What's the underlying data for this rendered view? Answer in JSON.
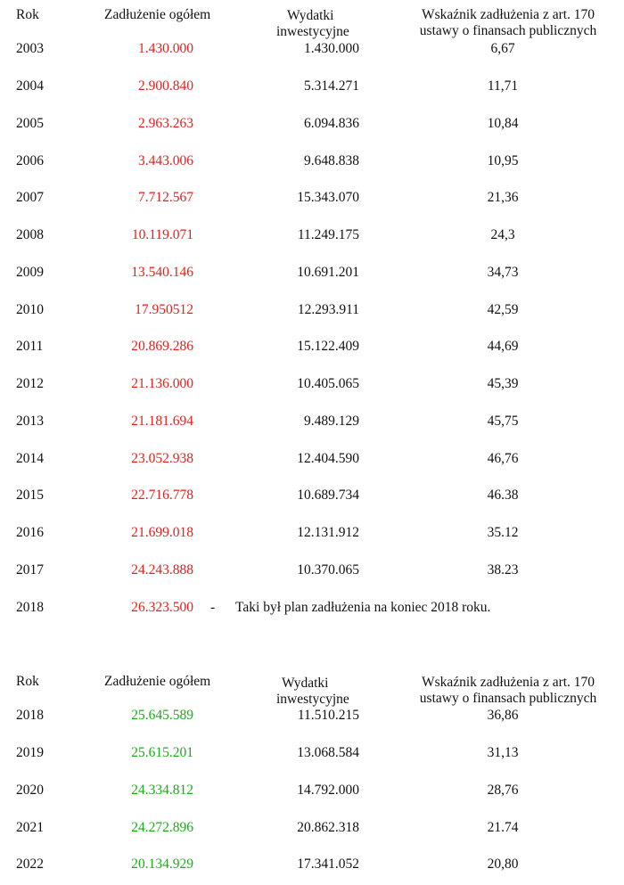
{
  "colors": {
    "debt_first": "#e0211e",
    "debt_second": "#1aab1a"
  },
  "table1": {
    "headers": {
      "year": "Rok",
      "debt": "Zadłużenie ogółem",
      "investment_line1": "Wydatki",
      "investment_line2": "inwestycyjne",
      "ratio_line1": "Wskaźnik zadłużenia z art. 170",
      "ratio_line2": "ustawy o finansach publicznych"
    },
    "rows": [
      {
        "year": "2003",
        "debt": "1.430.000",
        "investment": "1.430.000",
        "ratio": "6,67"
      },
      {
        "year": "2004",
        "debt": "2.900.840",
        "investment": "5.314.271",
        "ratio": "11,71"
      },
      {
        "year": "2005",
        "debt": "2.963.263",
        "investment": "6.094.836",
        "ratio": "10,84"
      },
      {
        "year": "2006",
        "debt": "3.443.006",
        "investment": "9.648.838",
        "ratio": "10,95"
      },
      {
        "year": "2007",
        "debt": "7.712.567",
        "investment": "15.343.070",
        "ratio": "21,36"
      },
      {
        "year": "2008",
        "debt": "10.119.071",
        "investment": "11.249.175",
        "ratio": "24,3"
      },
      {
        "year": "2009",
        "debt": "13.540.146",
        "investment": "10.691.201",
        "ratio": "34,73"
      },
      {
        "year": "2010",
        "debt": "17.950512",
        "investment": "12.293.911",
        "ratio": "42,59"
      },
      {
        "year": "2011",
        "debt": "20.869.286",
        "investment": "15.122.409",
        "ratio": "44,69"
      },
      {
        "year": "2012",
        "debt": "21.136.000",
        "investment": "10.405.065",
        "ratio": "45,39"
      },
      {
        "year": "2013",
        "debt": "21.181.694",
        "investment": "9.489.129",
        "ratio": "45,75"
      },
      {
        "year": "2014",
        "debt": "23.052.938",
        "investment": "12.404.590",
        "ratio": "46,76"
      },
      {
        "year": "2015",
        "debt": "22.716.778",
        "investment": "10.689.734",
        "ratio": "46.38"
      },
      {
        "year": "2016",
        "debt": "21.699.018",
        "investment": "12.131.912",
        "ratio": "35.12"
      },
      {
        "year": "2017",
        "debt": "24.243.888",
        "investment": "10.370.065",
        "ratio": "38.23"
      }
    ],
    "plan_row": {
      "year": "2018",
      "debt": "26.323.500",
      "dash": "-",
      "note": "Taki był plan zadłużenia na koniec 2018 roku."
    }
  },
  "table2": {
    "headers": {
      "year": "Rok",
      "debt": "Zadłużenie ogółem",
      "investment_line1": "Wydatki",
      "investment_line2": "inwestycyjne",
      "ratio_line1": "Wskaźnik zadłużenia z art. 170",
      "ratio_line2": "ustawy o finansach publicznych"
    },
    "rows": [
      {
        "year": "2018",
        "debt": "25.645.589",
        "investment": "11.510.215",
        "ratio": "36,86"
      },
      {
        "year": "2019",
        "debt": "25.615.201",
        "investment": "13.068.584",
        "ratio": "31,13"
      },
      {
        "year": "2020",
        "debt": "24.334.812",
        "investment": "14.792.000",
        "ratio": "28,76"
      },
      {
        "year": "2021",
        "debt": "24.272.896",
        "investment": "20.862.318",
        "ratio": "21.74"
      },
      {
        "year": "2022",
        "debt": "20.134.929",
        "investment": "17.341.052",
        "ratio": "20,80"
      }
    ]
  }
}
